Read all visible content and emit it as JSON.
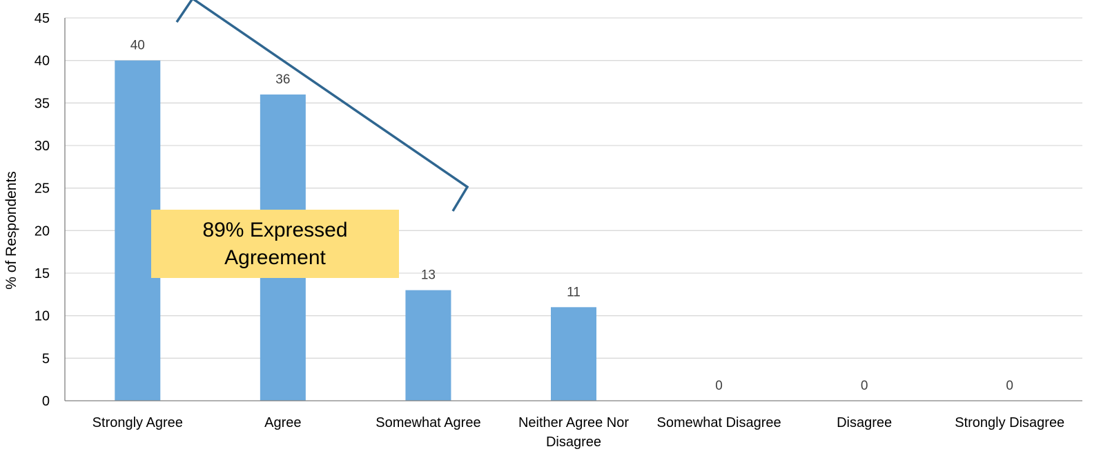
{
  "chart_data": {
    "type": "bar",
    "categories": [
      [
        "Strongly Agree"
      ],
      [
        "Agree"
      ],
      [
        "Somewhat Agree"
      ],
      [
        "Neither Agree Nor",
        "Disagree"
      ],
      [
        "Somewhat Disagree"
      ],
      [
        "Disagree"
      ],
      [
        "Strongly Disagree"
      ]
    ],
    "values": [
      40,
      36,
      13,
      11,
      0,
      0,
      0
    ],
    "data_labels": [
      "40",
      "36",
      "13",
      "11",
      "0",
      "0",
      "0"
    ],
    "ylabel": "% of Respondents",
    "ylim": [
      0,
      45
    ],
    "yticks": [
      0,
      5,
      10,
      15,
      20,
      25,
      30,
      35,
      40,
      45
    ],
    "ytick_labels": [
      "0",
      "5",
      "10",
      "15",
      "20",
      "25",
      "30",
      "35",
      "40",
      "45"
    ],
    "grid": true,
    "legend": "none",
    "colors": {
      "bar": "#6daadd",
      "grid": "#d9d9d9",
      "axis": "#808080",
      "bracket": "#2f6690",
      "callout": "#fedf7c"
    },
    "annotation": {
      "lines": [
        "89% Expressed",
        "Agreement"
      ],
      "applies_to_categories": [
        0,
        1,
        2
      ],
      "value": 89
    }
  }
}
